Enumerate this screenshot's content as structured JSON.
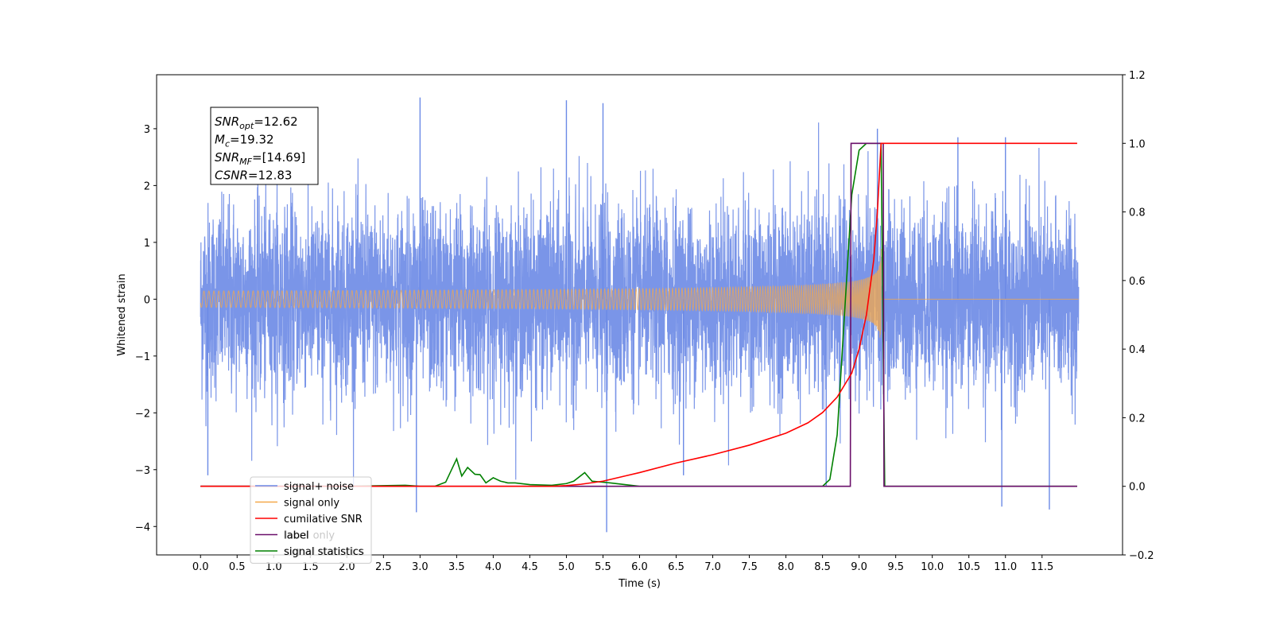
{
  "chart_data": {
    "type": "line",
    "title": "",
    "xlabel": "Time (s)",
    "ylabel": "Whitened strain",
    "xlim": [
      -0.6,
      12.6
    ],
    "ylim": [
      -4.5,
      3.95
    ],
    "y2lim": [
      -0.2,
      1.2
    ],
    "x_ticks": [
      0.0,
      0.5,
      1.0,
      1.5,
      2.0,
      2.5,
      3.0,
      3.5,
      4.0,
      4.5,
      5.0,
      5.5,
      6.0,
      6.5,
      7.0,
      7.5,
      8.0,
      8.5,
      9.0,
      9.5,
      10.0,
      10.5,
      11.0,
      11.5
    ],
    "x_tick_labels": [
      "0.0",
      "0.5",
      "1.0",
      "1.5",
      "2.0",
      "2.5",
      "3.0",
      "3.5",
      "4.0",
      "4.5",
      "5.0",
      "5.5",
      "6.0",
      "6.5",
      "7.0",
      "7.5",
      "8.0",
      "8.5",
      "9.0",
      "9.5",
      "10.0",
      "10.5",
      "11.0",
      "11.5"
    ],
    "y_ticks": [
      3,
      2,
      1,
      0,
      -1,
      -2,
      -3,
      -4
    ],
    "y_tick_labels": [
      "3",
      "2",
      "1",
      "0",
      "−1",
      "−2",
      "−3",
      "−4"
    ],
    "y2_ticks": [
      1.2,
      1.0,
      0.8,
      0.6,
      0.4,
      0.2,
      0.0,
      -0.2
    ],
    "y2_tick_labels": [
      "1.2",
      "1.0",
      "0.8",
      "0.6",
      "0.4",
      "0.2",
      "0.0",
      "−0.2"
    ],
    "grid": false,
    "legend_position": "bottom-left",
    "series": [
      {
        "name": "signal+ noise",
        "color": "#6b8ae6",
        "axis": "left",
        "kind": "noise",
        "x_range": [
          0.0,
          12.0
        ],
        "typical_amplitude": 1.3,
        "extremes": [
          {
            "x": 0.1,
            "y": -3.1
          },
          {
            "x": 3.0,
            "y": 3.55
          },
          {
            "x": 2.95,
            "y": -3.75
          },
          {
            "x": 5.0,
            "y": 3.5
          },
          {
            "x": 5.5,
            "y": 3.45
          },
          {
            "x": 5.55,
            "y": -4.1
          },
          {
            "x": 6.6,
            "y": -3.1
          },
          {
            "x": 8.55,
            "y": -3.3
          },
          {
            "x": 9.25,
            "y": 3.0
          },
          {
            "x": 10.35,
            "y": 2.85
          },
          {
            "x": 10.95,
            "y": -3.65
          },
          {
            "x": 11.6,
            "y": -3.7
          },
          {
            "x": 11.0,
            "y": 2.85
          }
        ]
      },
      {
        "name": "signal only",
        "color": "#f5a849",
        "axis": "left",
        "kind": "chirp",
        "x_range": [
          0.0,
          12.0
        ],
        "merger_time": 9.3,
        "peak_amplitude": 1.0
      },
      {
        "name": "cumilative SNR",
        "color": "#ff0000",
        "axis": "right",
        "x": [
          0.0,
          4.6,
          4.8,
          5.0,
          5.2,
          5.5,
          5.8,
          6.0,
          6.5,
          7.0,
          7.5,
          8.0,
          8.3,
          8.5,
          8.7,
          8.9,
          9.0,
          9.1,
          9.2,
          9.25,
          9.3,
          9.35,
          9.4,
          10.0,
          11.0,
          11.98
        ],
        "y": [
          0.0,
          0.0,
          0.0,
          0.002,
          0.006,
          0.015,
          0.03,
          0.04,
          0.068,
          0.092,
          0.12,
          0.155,
          0.185,
          0.215,
          0.26,
          0.33,
          0.4,
          0.5,
          0.66,
          0.8,
          1.0,
          1.0,
          1.0,
          1.0,
          1.0,
          1.0
        ]
      },
      {
        "name": "label",
        "color": "#6a0f6a",
        "axis": "right",
        "x": [
          0.0,
          8.88,
          8.89,
          9.33,
          9.34,
          11.98
        ],
        "y": [
          0.0,
          0.0,
          1.0,
          1.0,
          0.0,
          0.0
        ]
      },
      {
        "name": "signal statistics",
        "color": "#008000",
        "axis": "right",
        "x": [
          0.0,
          2.0,
          2.8,
          3.0,
          3.2,
          3.35,
          3.5,
          3.57,
          3.65,
          3.75,
          3.82,
          3.9,
          4.0,
          4.1,
          4.2,
          4.3,
          4.5,
          4.8,
          5.0,
          5.1,
          5.25,
          5.35,
          5.6,
          6.0,
          8.5,
          8.6,
          8.7,
          8.8,
          8.9,
          9.0,
          9.1,
          9.2,
          9.3,
          9.35,
          9.36,
          10.0,
          11.98
        ],
        "y": [
          0.0,
          0.0,
          0.003,
          0.0,
          0.0,
          0.012,
          0.08,
          0.03,
          0.055,
          0.035,
          0.034,
          0.01,
          0.025,
          0.015,
          0.01,
          0.01,
          0.005,
          0.003,
          0.008,
          0.015,
          0.04,
          0.015,
          0.01,
          0.0,
          0.0,
          0.02,
          0.15,
          0.5,
          0.85,
          0.98,
          1.0,
          1.0,
          1.0,
          0.0,
          0.0,
          0.0,
          0.0
        ]
      }
    ],
    "legend_entries": [
      {
        "label": "signal+ noise",
        "color": "#6b8ae6"
      },
      {
        "label": "signal only",
        "color": "#f5a849"
      },
      {
        "label": "cumilative SNR",
        "color": "#ff0000"
      },
      {
        "label": "label",
        "color": "#6a0f6a"
      },
      {
        "label": "signal statistics",
        "color": "#008000"
      }
    ],
    "legend_ghost_labels": [
      "label only",
      "signal statistics"
    ],
    "annotation_box": [
      {
        "name": "SNR",
        "sub": "opt",
        "value": "=12.62"
      },
      {
        "name": "M",
        "sub": "c",
        "value": "=19.32"
      },
      {
        "name": "SNR",
        "sub": "MF",
        "value": "=[14.69]"
      },
      {
        "name": "CSNR",
        "sub": "",
        "value": "=12.83"
      }
    ]
  }
}
